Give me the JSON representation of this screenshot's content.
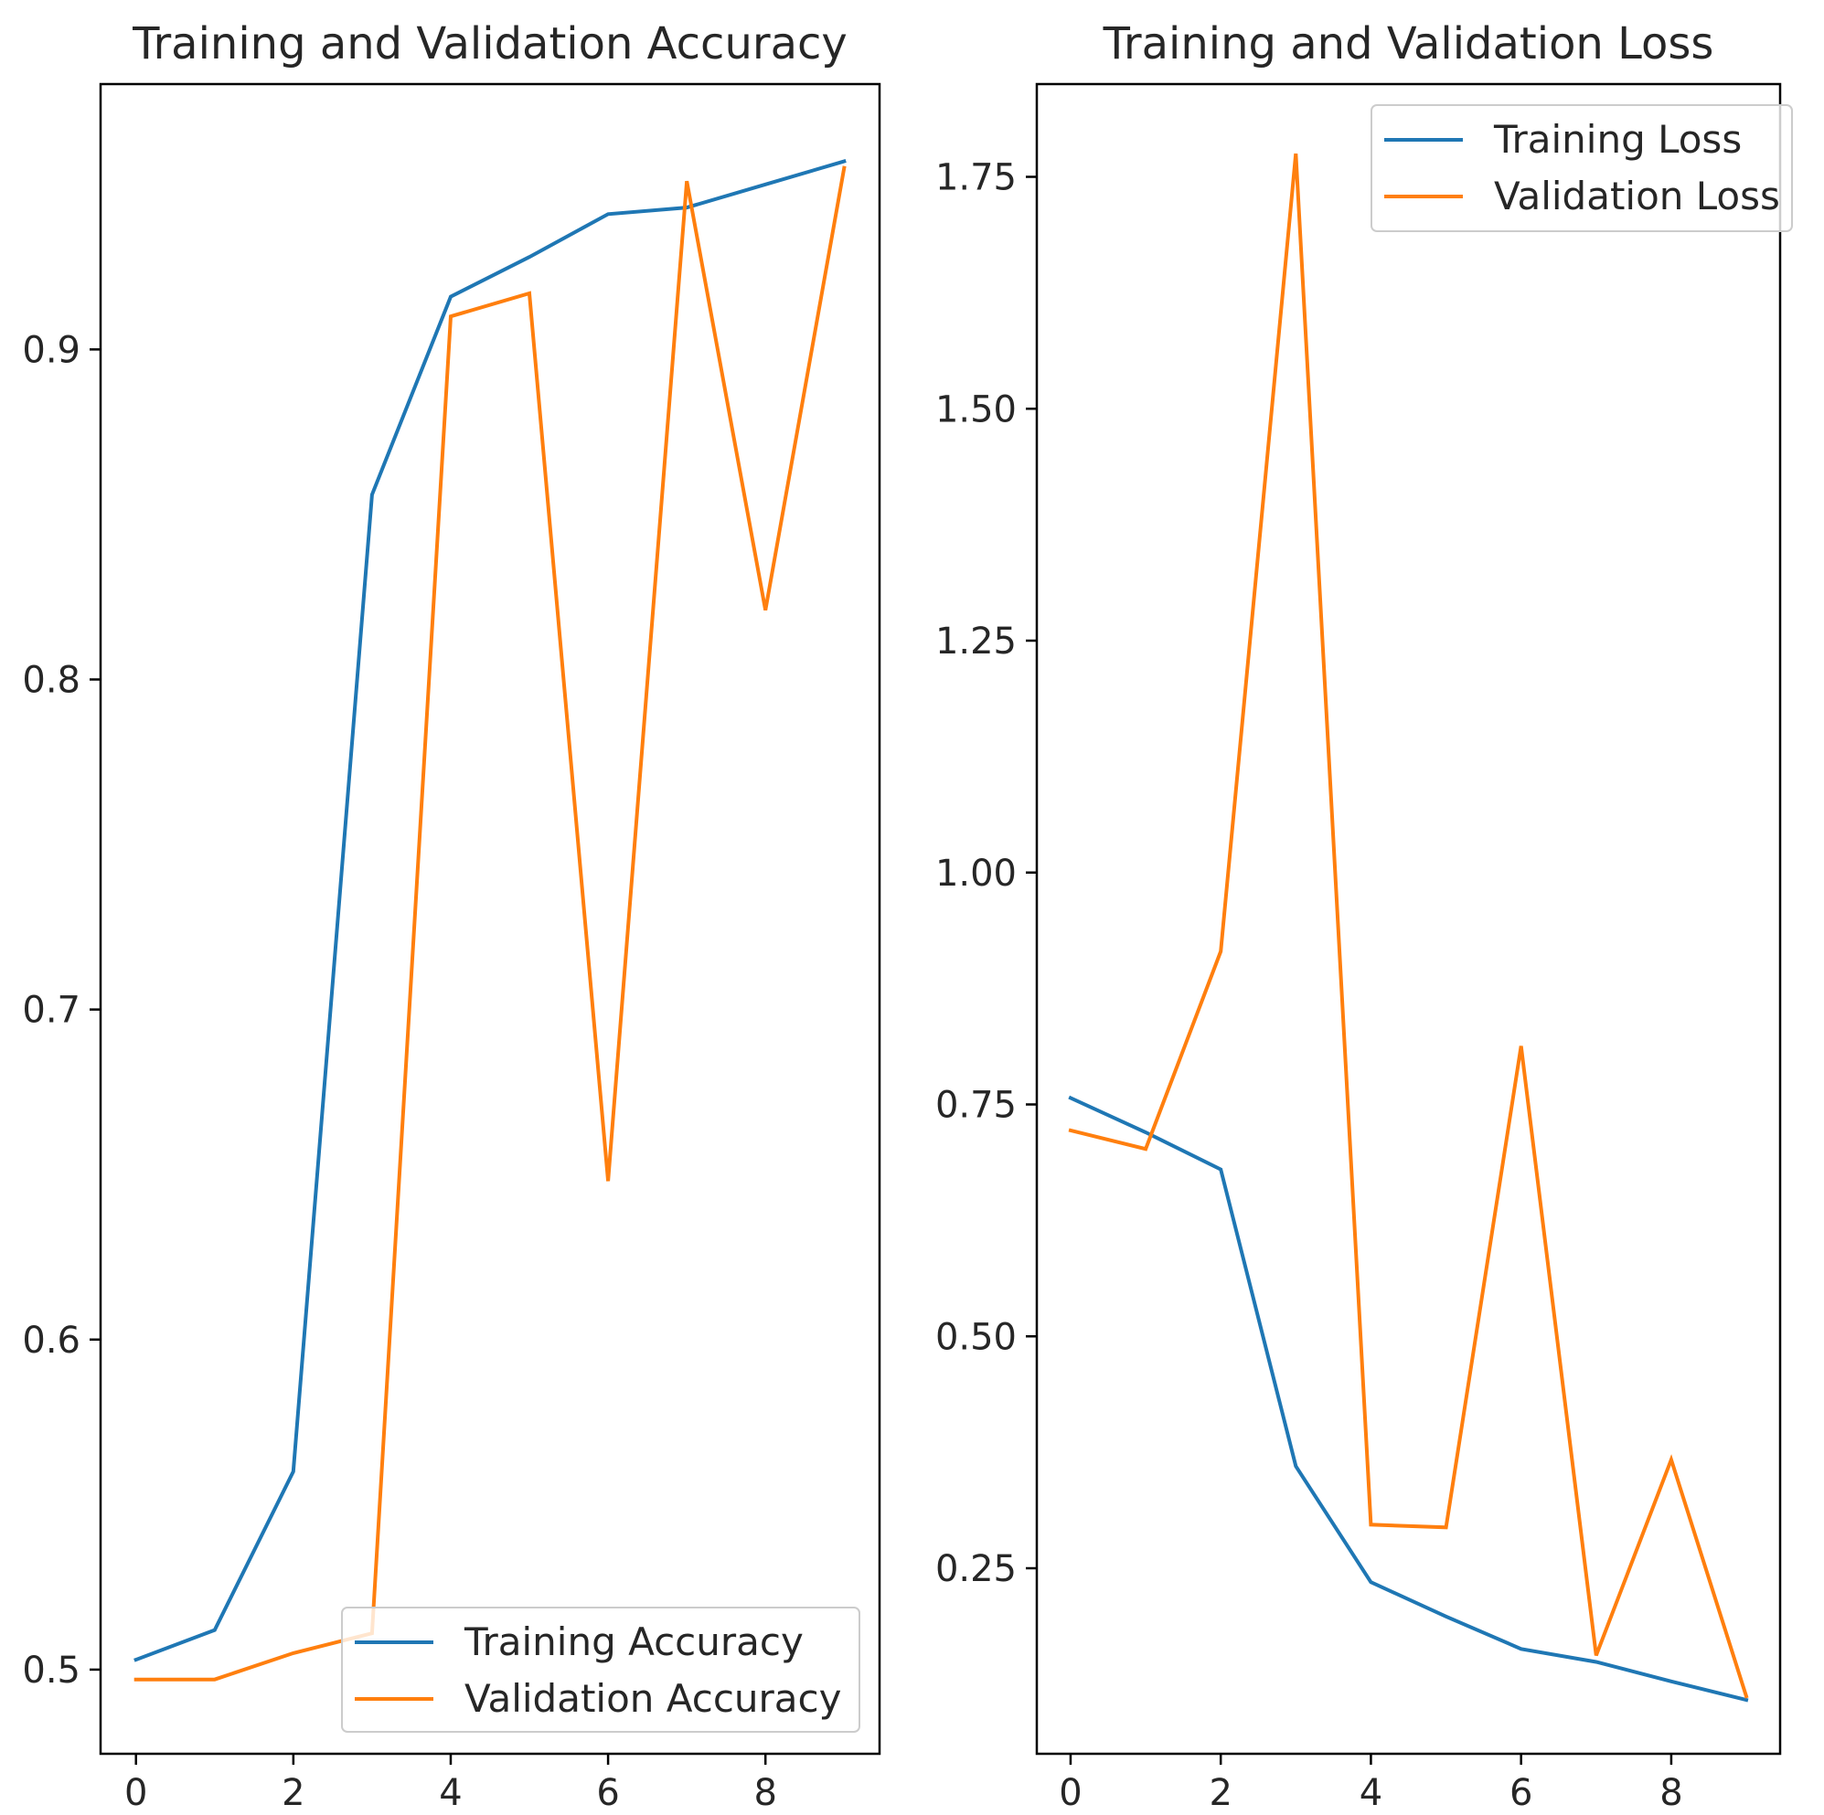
{
  "chart_data": [
    {
      "type": "line",
      "title": "Training and Validation Accuracy",
      "xlabel": "",
      "ylabel": "",
      "xlim": [
        -0.45,
        9.45
      ],
      "ylim": [
        0.4745,
        0.9804
      ],
      "xticks": [
        0,
        2,
        4,
        6,
        8
      ],
      "xtick_labels": [
        "0",
        "2",
        "4",
        "6",
        "8"
      ],
      "yticks": [
        0.5,
        0.6,
        0.7,
        0.8,
        0.9
      ],
      "ytick_labels": [
        "0.5",
        "0.6",
        "0.7",
        "0.8",
        "0.9"
      ],
      "x": [
        0,
        1,
        2,
        3,
        4,
        5,
        6,
        7,
        8,
        9
      ],
      "series": [
        {
          "name": "Training Accuracy",
          "color": "#1f77b4",
          "values": [
            0.503,
            0.512,
            0.56,
            0.856,
            0.916,
            0.928,
            0.941,
            0.943,
            0.95,
            0.957
          ]
        },
        {
          "name": "Validation Accuracy",
          "color": "#ff7f0e",
          "values": [
            0.497,
            0.497,
            0.505,
            0.511,
            0.91,
            0.917,
            0.648,
            0.951,
            0.821,
            0.955
          ]
        }
      ],
      "legend_position": "lower right",
      "grid": false
    },
    {
      "type": "line",
      "title": "Training and Validation Loss",
      "xlabel": "",
      "ylabel": "",
      "xlim": [
        -0.45,
        9.45
      ],
      "ylim": [
        0.05,
        1.85
      ],
      "xticks": [
        0,
        2,
        4,
        6,
        8
      ],
      "xtick_labels": [
        "0",
        "2",
        "4",
        "6",
        "8"
      ],
      "yticks": [
        0.25,
        0.5,
        0.75,
        1.0,
        1.25,
        1.5,
        1.75
      ],
      "ytick_labels": [
        "0.25",
        "0.50",
        "0.75",
        "1.00",
        "1.25",
        "1.50",
        "1.75"
      ],
      "x": [
        0,
        1,
        2,
        3,
        4,
        5,
        6,
        7,
        8,
        9
      ],
      "series": [
        {
          "name": "Training Loss",
          "color": "#1f77b4",
          "values": [
            0.757,
            0.72,
            0.68,
            0.36,
            0.235,
            0.198,
            0.163,
            0.149,
            0.128,
            0.108
          ]
        },
        {
          "name": "Validation Loss",
          "color": "#ff7f0e",
          "values": [
            0.722,
            0.702,
            0.915,
            1.775,
            0.297,
            0.294,
            0.813,
            0.156,
            0.367,
            0.112
          ]
        }
      ],
      "legend_position": "upper right",
      "grid": false
    }
  ]
}
